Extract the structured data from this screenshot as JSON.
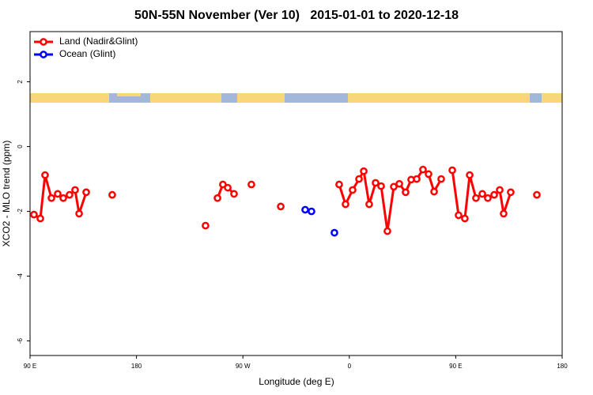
{
  "chart_data": {
    "type": "line",
    "title": "50N-55N November (Ver 10)   2015-01-01 to 2020-12-18",
    "x_label": "Longitude (deg E)",
    "y_label": "XCO2 - MLO trend (ppm)",
    "xlim": [
      90,
      540
    ],
    "xticks": [
      {
        "value": 90,
        "label": "90 E"
      },
      180,
      {
        "value": 270,
        "label": "90 W"
      },
      {
        "value": 360,
        "label": "0"
      },
      {
        "value": 450,
        "label": "90 E"
      },
      {
        "value": 540,
        "label": "180"
      }
    ],
    "ylim": [
      -6.45,
      3.55
    ],
    "yticks": [
      -6,
      -4,
      -2,
      0,
      2
    ],
    "legend": "top-left",
    "series": [
      {
        "name": "Land (Nadir&Glint)",
        "color": "#ff0000",
        "x": [
          93.3,
          98.7,
          102.7,
          108.1,
          113.4,
          118.1,
          123.4,
          128.1,
          131.5,
          137.5,
          null,
          159.5,
          null,
          238.4,
          null,
          248.5,
          253.1,
          257.2,
          262.5,
          null,
          277.2,
          null,
          302.0,
          null,
          351.4,
          356.8,
          362.8,
          368.2,
          372.2,
          376.8,
          382.2,
          386.9,
          392.2,
          397.6,
          402.3,
          407.6,
          412.3,
          417.0,
          422.3,
          427.0,
          431.7,
          437.7,
          null,
          447.1,
          452.4,
          457.7,
          461.8,
          467.1,
          472.5,
          477.1,
          482.5,
          487.2,
          490.5,
          496.5,
          null,
          518.6
        ],
        "values": [
          -2.1,
          -2.22,
          -0.88,
          -1.59,
          -1.46,
          -1.59,
          -1.49,
          -1.34,
          -2.07,
          -1.41,
          null,
          -1.49,
          null,
          -2.44,
          null,
          -1.59,
          -1.17,
          -1.27,
          -1.46,
          null,
          -1.17,
          null,
          -1.85,
          null,
          -1.17,
          -1.78,
          -1.34,
          -1.0,
          -0.76,
          -1.78,
          -1.12,
          -1.22,
          -2.61,
          -1.24,
          -1.15,
          -1.41,
          -1.02,
          -1.0,
          -0.71,
          -0.85,
          -1.39,
          -1.0,
          null,
          -0.73,
          -2.12,
          -2.22,
          -0.88,
          -1.59,
          -1.46,
          -1.59,
          -1.49,
          -1.34,
          -2.07,
          -1.41,
          null,
          -1.49
        ]
      },
      {
        "name": "Ocean (Glint)",
        "color": "#0000ff",
        "x": [
          322.7,
          null,
          328.0,
          null,
          347.4
        ],
        "values": [
          -1.95,
          null,
          -2.0,
          null,
          -2.66
        ]
      }
    ]
  }
}
